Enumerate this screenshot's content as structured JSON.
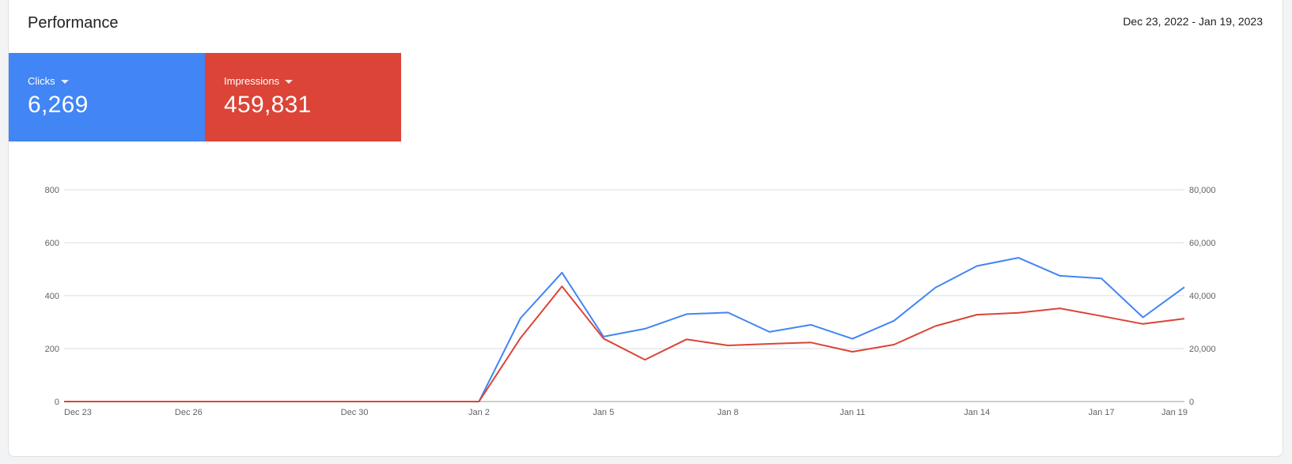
{
  "header": {
    "title": "Performance",
    "date_range": "Dec 23, 2022 - Jan 19, 2023"
  },
  "metrics": {
    "clicks": {
      "label": "Clicks",
      "value": "6,269",
      "color": "#4285f4"
    },
    "impressions": {
      "label": "Impressions",
      "value": "459,831",
      "color": "#db4437"
    }
  },
  "chart_data": {
    "type": "line",
    "x": [
      "Dec 23",
      "Dec 24",
      "Dec 25",
      "Dec 26",
      "Dec 27",
      "Dec 28",
      "Dec 29",
      "Dec 30",
      "Dec 31",
      "Jan 1",
      "Jan 2",
      "Jan 3",
      "Jan 4",
      "Jan 5",
      "Jan 6",
      "Jan 7",
      "Jan 8",
      "Jan 9",
      "Jan 10",
      "Jan 11",
      "Jan 12",
      "Jan 13",
      "Jan 14",
      "Jan 15",
      "Jan 16",
      "Jan 17",
      "Jan 18",
      "Jan 19"
    ],
    "x_ticks": [
      "Dec 23",
      "Dec 26",
      "Dec 30",
      "Jan 2",
      "Jan 5",
      "Jan 8",
      "Jan 11",
      "Jan 14",
      "Jan 17",
      "Jan 19"
    ],
    "series": [
      {
        "name": "Clicks",
        "axis": "left",
        "color": "#4285f4",
        "values": [
          0,
          0,
          0,
          0,
          0,
          0,
          0,
          0,
          0,
          0,
          0,
          315,
          487,
          245,
          275,
          330,
          336,
          263,
          290,
          237,
          305,
          430,
          512,
          543,
          475,
          465,
          318,
          432
        ]
      },
      {
        "name": "Impressions",
        "axis": "right",
        "color": "#db4437",
        "values": [
          0,
          0,
          0,
          0,
          0,
          0,
          0,
          0,
          0,
          0,
          0,
          24000,
          43500,
          23800,
          15800,
          23500,
          21200,
          21800,
          22300,
          18800,
          21500,
          28500,
          32800,
          33500,
          35200,
          32300,
          29300,
          31300
        ]
      }
    ],
    "y_left": {
      "lim": [
        0,
        800
      ],
      "ticks": [
        "0",
        "200",
        "400",
        "600",
        "800"
      ]
    },
    "y_right": {
      "lim": [
        0,
        80000
      ],
      "ticks": [
        "0",
        "20,000",
        "40,000",
        "60,000",
        "80,000"
      ]
    },
    "grid": true,
    "legend": "none"
  }
}
